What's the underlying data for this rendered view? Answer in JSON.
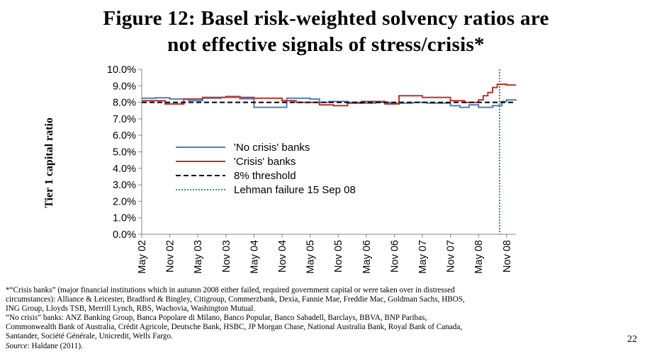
{
  "title_line1": "Figure 12: Basel risk-weighted solvency ratios are",
  "title_line2": "not effective signals of stress/crisis*",
  "notes": {
    "line1": "*“Crisis banks” (major financial institutions which in autumn 2008 either failed, required government capital or were taken over in distressed",
    "line2": "circumstances): Alliance & Leicester, Bradford & Bingley, Citigroup, Commerzbank, Dexia, Fannie Mae, Freddie Mac, Goldman Sachs, HBOS,",
    "line3": "ING Group, Lloyds TSB, Merrill Lynch, RBS, Wachovia, Washington Mutual.",
    "line4": "“No crisis” banks: ANZ Banking Group, Banca Popolare di Milano, Banco Popular, Banco Sabadell, Barclays, BBVA, BNP Paribas,",
    "line5": "Commonwealth Bank of Australia, Crédit Agricole, Deutsche Bank, HSBC, JP Morgan Chase, National Australia Bank, Royal Bank of Canada,",
    "line6": "Santander, Société Générale, Unicredit, Wells Fargo.",
    "source_label": "Source",
    "source_text": ": Haldane (2011)."
  },
  "page_number": "22",
  "colors": {
    "no_crisis": "#4a7fbf",
    "crisis": "#c0302a",
    "threshold": "#000000",
    "lehman": "#2e9e4a"
  },
  "chart_data": {
    "type": "line",
    "ylabel": "Tier 1 capital ratio",
    "xlabel": "",
    "ylim": [
      0,
      10
    ],
    "yticks": [
      "0.0%",
      "1.0%",
      "2.0%",
      "3.0%",
      "4.0%",
      "5.0%",
      "6.0%",
      "7.0%",
      "8.0%",
      "9.0%",
      "10.0%"
    ],
    "x_ticks": [
      "May 02",
      "Nov 02",
      "May 03",
      "Nov 03",
      "May 04",
      "Nov 04",
      "May 05",
      "Nov 05",
      "May 06",
      "Nov 06",
      "May 07",
      "Nov 07",
      "May 08",
      "Nov 08"
    ],
    "x_range_months": [
      0,
      80
    ],
    "grid": false,
    "legend_position": "center-left",
    "series": [
      {
        "name": "'No crisis' banks",
        "step": true,
        "points": [
          [
            0,
            8.25
          ],
          [
            3,
            8.28
          ],
          [
            6,
            8.2
          ],
          [
            10,
            8.1
          ],
          [
            13,
            8.25
          ],
          [
            17,
            8.3
          ],
          [
            21,
            8.22
          ],
          [
            24,
            7.7
          ],
          [
            31,
            8.25
          ],
          [
            36,
            8.2
          ],
          [
            38,
            8.0
          ],
          [
            40,
            8.05
          ],
          [
            44,
            8.0
          ],
          [
            47,
            7.95
          ],
          [
            50,
            8.0
          ],
          [
            53,
            7.95
          ],
          [
            58,
            8.0
          ],
          [
            61,
            7.95
          ],
          [
            66,
            7.8
          ],
          [
            68,
            7.7
          ],
          [
            70,
            7.85
          ],
          [
            72,
            7.7
          ],
          [
            75,
            7.8
          ],
          [
            77,
            8.05
          ],
          [
            78,
            8.15
          ],
          [
            80,
            8.1
          ]
        ]
      },
      {
        "name": "'Crisis' banks",
        "step": true,
        "points": [
          [
            0,
            8.1
          ],
          [
            5,
            7.9
          ],
          [
            9,
            8.2
          ],
          [
            13,
            8.3
          ],
          [
            18,
            8.35
          ],
          [
            21,
            8.3
          ],
          [
            24,
            8.25
          ],
          [
            30,
            8.1
          ],
          [
            33,
            8.0
          ],
          [
            38,
            7.85
          ],
          [
            41,
            7.8
          ],
          [
            44,
            7.95
          ],
          [
            47,
            8.05
          ],
          [
            52,
            7.9
          ],
          [
            55,
            8.4
          ],
          [
            60,
            8.3
          ],
          [
            66,
            8.1
          ],
          [
            69,
            8.0
          ],
          [
            72,
            8.15
          ],
          [
            73,
            8.4
          ],
          [
            74,
            8.6
          ],
          [
            75,
            8.9
          ],
          [
            76,
            9.1
          ],
          [
            78,
            9.05
          ],
          [
            80,
            9.05
          ]
        ]
      },
      {
        "name": "8% threshold",
        "step": false,
        "points": [
          [
            0,
            8.0
          ],
          [
            80,
            8.0
          ]
        ]
      },
      {
        "name": "Lehman failure 15 Sep 08",
        "vertical_at_month": 76.5
      }
    ]
  }
}
